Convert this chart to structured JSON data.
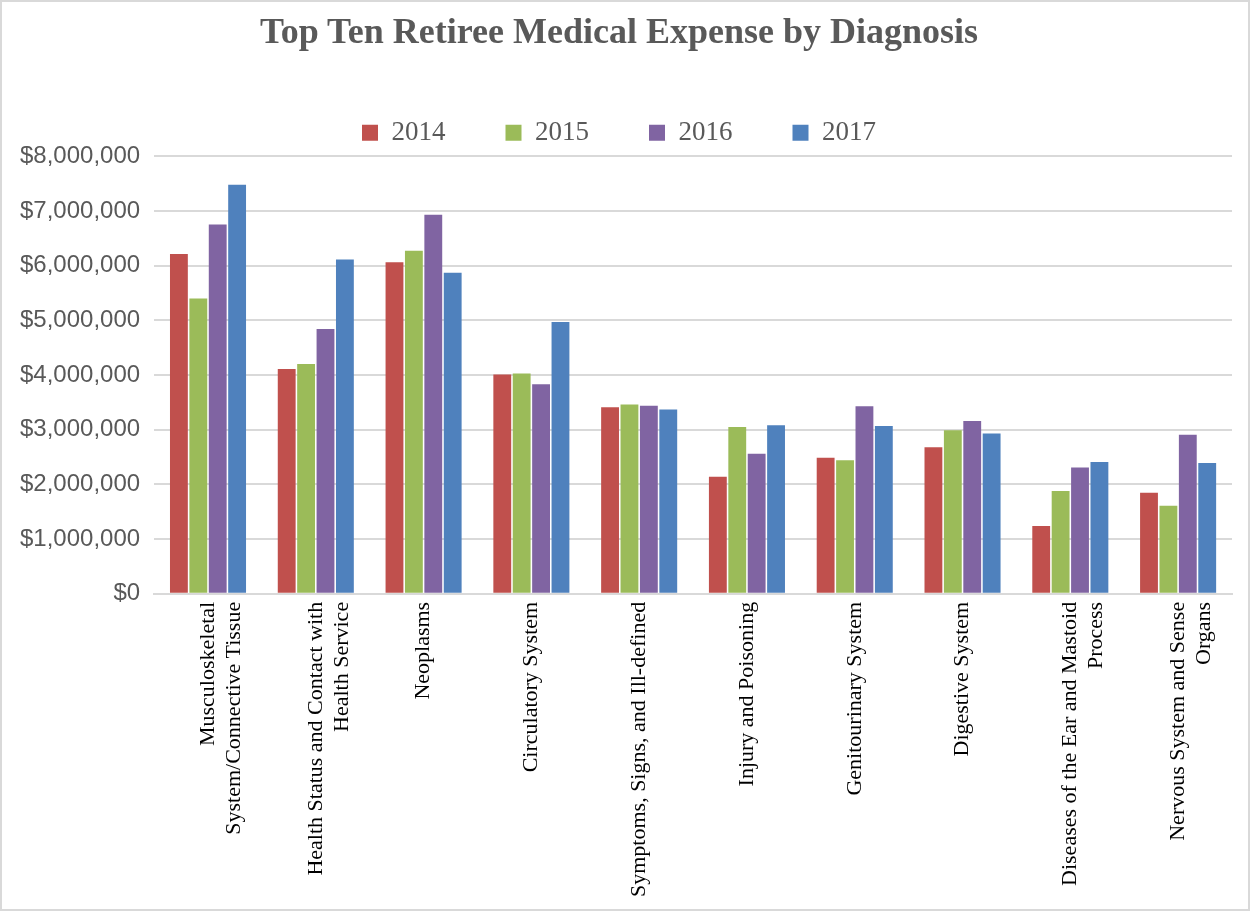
{
  "chart_data": {
    "type": "bar",
    "title": "Top Ten Retiree Medical Expense by Diagnosis",
    "categories": [
      "Musculoskeletal System/Connective Tissue",
      "Health Status and Contact with Health Service",
      "Neoplasms",
      "Circulatory System",
      "Symptoms, Signs, and Ill-defined",
      "Injury and Poisoning",
      "Genitourinary System",
      "Digestive System",
      "Diseases of the Ear and Mastoid Process",
      "Nervous System and Sense Organs"
    ],
    "series": [
      {
        "name": "2014",
        "color": "#c0504d",
        "values": [
          6210000,
          4110000,
          6060000,
          4010000,
          3410000,
          2140000,
          2490000,
          2680000,
          1240000,
          1850000
        ]
      },
      {
        "name": "2015",
        "color": "#9bbb59",
        "values": [
          5400000,
          4200000,
          6270000,
          4030000,
          3460000,
          3050000,
          2440000,
          2990000,
          1880000,
          1610000
        ]
      },
      {
        "name": "2016",
        "color": "#8064a2",
        "values": [
          6750000,
          4840000,
          6930000,
          3830000,
          3440000,
          2560000,
          3430000,
          3160000,
          2310000,
          2910000
        ]
      },
      {
        "name": "2017",
        "color": "#4f81bd",
        "values": [
          7480000,
          6110000,
          5870000,
          4970000,
          3370000,
          3080000,
          3070000,
          2930000,
          2410000,
          2390000
        ]
      }
    ],
    "ylim": [
      0,
      8000000
    ],
    "yticks": [
      {
        "value": 0,
        "label": "$0"
      },
      {
        "value": 1000000,
        "label": "$1,000,000"
      },
      {
        "value": 2000000,
        "label": "$2,000,000"
      },
      {
        "value": 3000000,
        "label": "$3,000,000"
      },
      {
        "value": 4000000,
        "label": "$4,000,000"
      },
      {
        "value": 5000000,
        "label": "$5,000,000"
      },
      {
        "value": 6000000,
        "label": "$6,000,000"
      },
      {
        "value": 7000000,
        "label": "$7,000,000"
      },
      {
        "value": 8000000,
        "label": "$8,000,000"
      }
    ],
    "grid": "y",
    "legend": "top"
  }
}
